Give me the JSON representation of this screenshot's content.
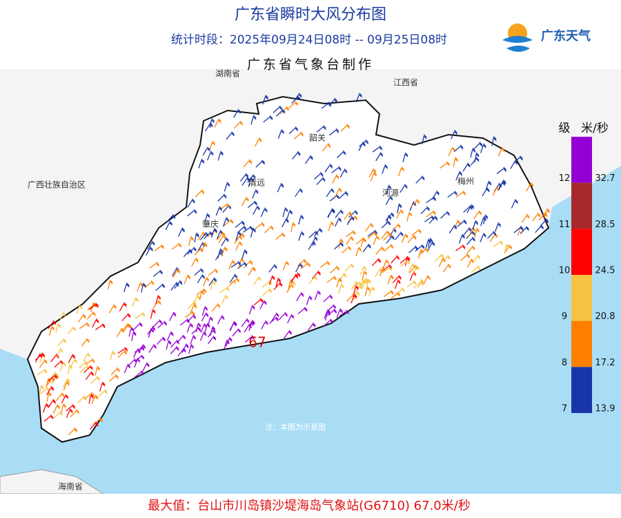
{
  "header": {
    "title": "广东省瞬时大风分布图",
    "subtitle": "统计时段：2025年09月24日08时 -- 09月25日08时",
    "agency": "广东省气象台制作"
  },
  "logo": {
    "text": "广东天气"
  },
  "legend": {
    "level_header": "级",
    "speed_header": "米/秒",
    "items": [
      {
        "level": 12,
        "speed": 32.7,
        "color": "#9400d3"
      },
      {
        "level": 11,
        "speed": 28.5,
        "color": "#a8292b"
      },
      {
        "level": 10,
        "speed": 24.5,
        "color": "#ff0000"
      },
      {
        "level": 9,
        "speed": 20.8,
        "color": "#f7c343"
      },
      {
        "level": 8,
        "speed": 17.2,
        "color": "#ff8000"
      },
      {
        "level": 7,
        "speed": 13.9,
        "color": "#1836a8"
      }
    ]
  },
  "map": {
    "labels": [
      "湖南省",
      "江西省",
      "韶关",
      "清远",
      "河源",
      "梅州",
      "肇庆",
      "广西壮族自治区",
      "海南省"
    ],
    "max_marker": "67",
    "note": "注：本图为示意图"
  },
  "footer": {
    "max_value": "最大值：台山市川岛镇沙堤海岛气象站(G6710) 67.0米/秒"
  }
}
